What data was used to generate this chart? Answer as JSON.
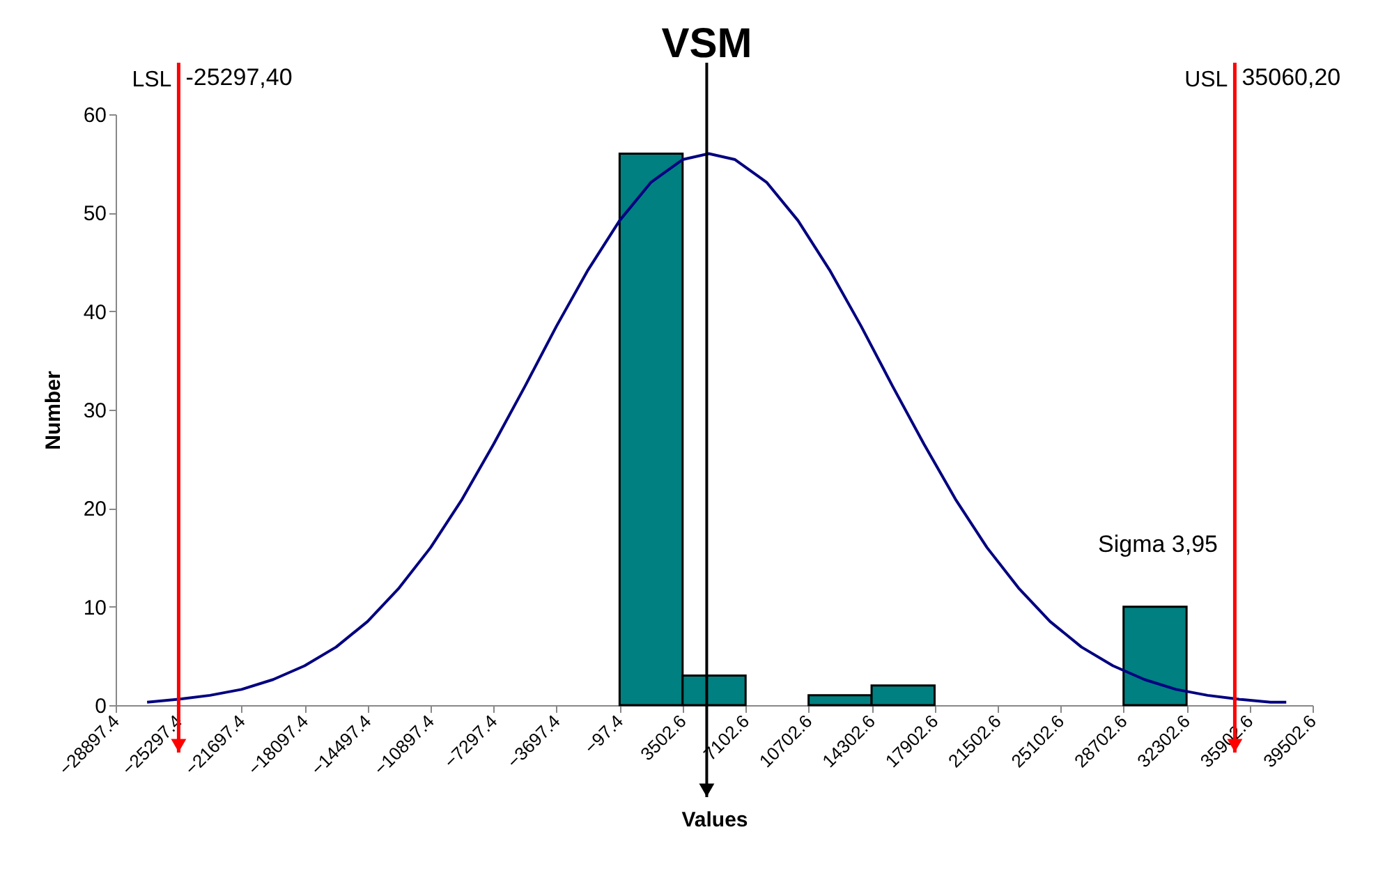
{
  "chart_data": {
    "type": "histogram",
    "xlabel": "Values",
    "ylabel": "Number",
    "bins": [
      -28897.4,
      -25297.4,
      -21697.4,
      -18097.4,
      -14497.4,
      -10897.4,
      -7297.4,
      -3697.4,
      -97.4,
      3502.6,
      7102.6,
      10702.6,
      14302.6,
      17902.6,
      21502.6,
      25102.6,
      28702.6,
      32302.6,
      35902.6,
      39502.6
    ],
    "series": [
      {
        "color": "#008080",
        "values": [
          0,
          0,
          0,
          0,
          0,
          0,
          0,
          0,
          56,
          3,
          0,
          1,
          2,
          0,
          0,
          0,
          10,
          0,
          0
        ]
      },
      {
        "type": "line",
        "color": "#000080",
        "x": [
          -27100,
          -25300,
          -23500,
          -21700,
          -19900,
          -18100,
          -16300,
          -14500,
          -12700,
          -10900,
          -9100,
          -7300,
          -5500,
          -3700,
          -1900,
          -100,
          1700,
          3500,
          5000,
          6500,
          8300,
          10100,
          11900,
          13700,
          15500,
          17300,
          19100,
          20900,
          22700,
          24500,
          26300,
          28100,
          29900,
          31700,
          33500,
          35300,
          37100,
          38000
        ],
        "values": [
          0.3,
          0.6,
          1.0,
          1.6,
          2.6,
          4.0,
          5.9,
          8.5,
          11.9,
          16.0,
          20.9,
          26.5,
          32.4,
          38.5,
          44.2,
          49.2,
          53.1,
          55.4,
          56.0,
          55.4,
          53.1,
          49.2,
          44.2,
          38.5,
          32.4,
          26.5,
          20.9,
          16.0,
          11.9,
          8.5,
          5.9,
          4.0,
          2.6,
          1.6,
          1.0,
          0.6,
          0.3,
          0.3
        ]
      }
    ],
    "xlim": [
      -28897.4,
      39502.6
    ],
    "xticks": [
      -28897.4,
      -25297.4,
      -21697.4,
      -18097.4,
      -14497.4,
      -10897.4,
      -7297.4,
      -3697.4,
      -97.4,
      3502.6,
      7102.6,
      10702.6,
      14302.6,
      17902.6,
      21502.6,
      25102.6,
      28702.6,
      32302.6,
      35902.6,
      39502.6
    ],
    "ylim": [
      0,
      60
    ],
    "yticks": [
      0,
      10,
      20,
      30,
      40,
      50,
      60
    ],
    "grid": false,
    "marker": "none",
    "line_style": "solid",
    "ref_lines": [
      {
        "axis": "x",
        "value": -25297.4,
        "label": "LSL",
        "color": "#ff0000"
      },
      {
        "axis": "x",
        "value": 35060.2,
        "label": "USL",
        "color": "#ff0000"
      },
      {
        "axis": "x",
        "value": 4881.4,
        "label": "VSM",
        "color": "#000000"
      }
    ],
    "annotations": [
      "-25297,40",
      "35060,20",
      "Sigma 3,95"
    ]
  }
}
